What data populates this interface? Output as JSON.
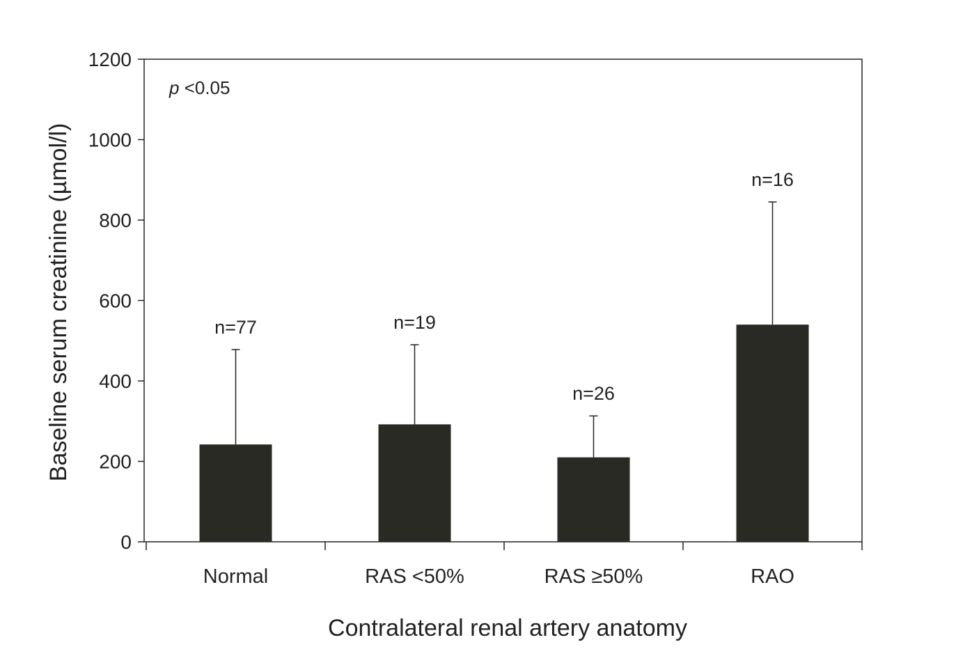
{
  "chart_data": {
    "type": "bar",
    "title": "",
    "xlabel": "Contralateral renal artery anatomy",
    "ylabel": "Baseline serum creatinine (µmol/l)",
    "ylim": [
      0,
      1200
    ],
    "yticks": [
      0,
      200,
      400,
      600,
      800,
      1000,
      1200
    ],
    "categories": [
      "Normal",
      "RAS <50%",
      "RAS ≥50%",
      "RAO"
    ],
    "values": [
      242,
      292,
      210,
      540
    ],
    "error_upper": [
      478,
      490,
      313,
      845
    ],
    "sample_sizes": [
      "n=77",
      "n=19",
      "n=26",
      "n=16"
    ],
    "annotation": {
      "p_symbol": "p",
      "text": " <0.05"
    },
    "bar_color": "#2a2a24",
    "grid": false,
    "legend": "none"
  }
}
